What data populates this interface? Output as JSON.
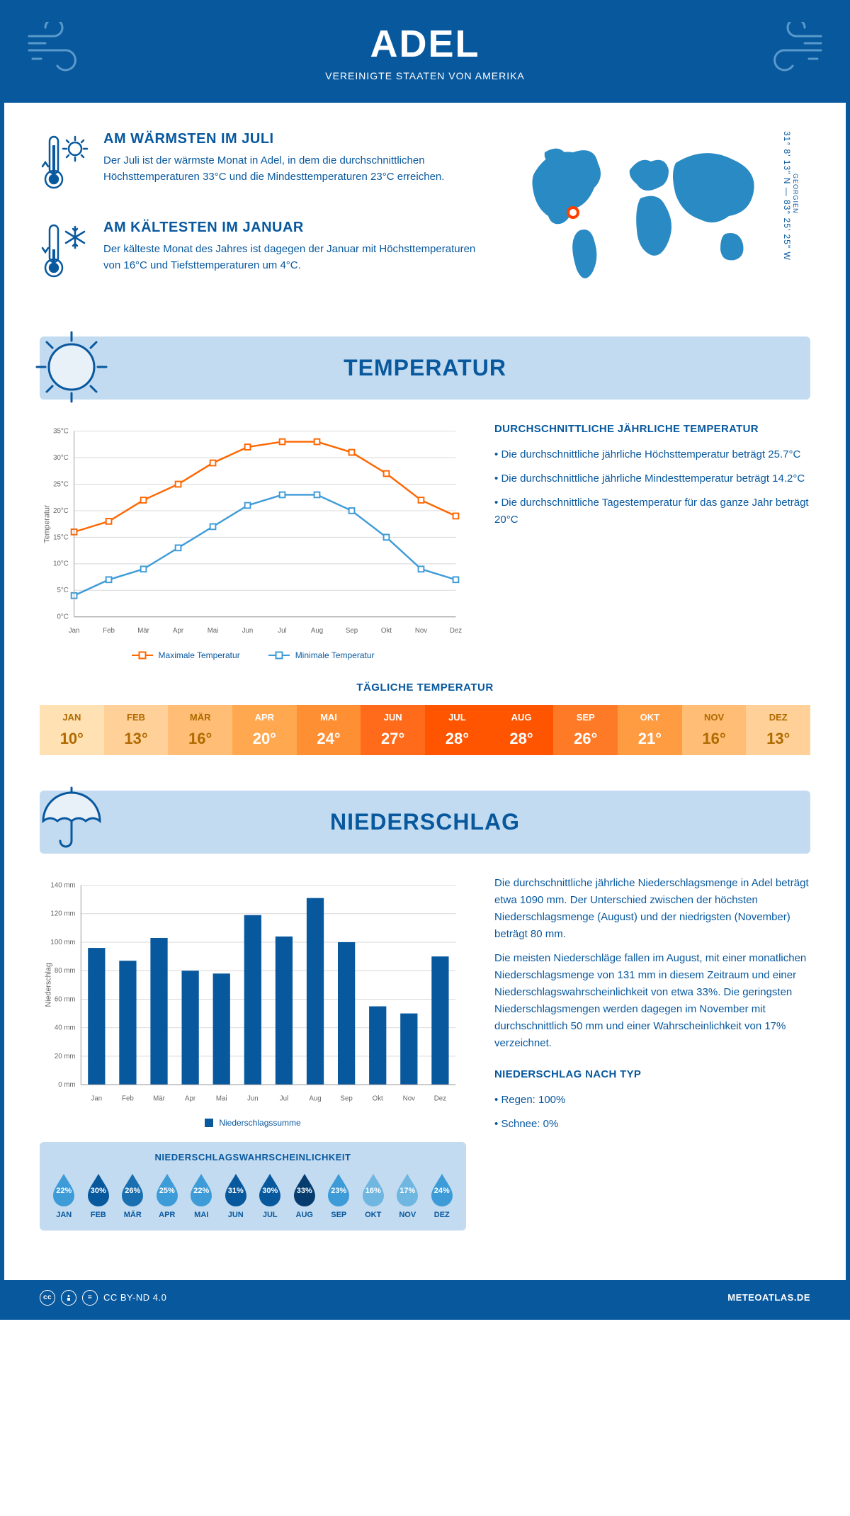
{
  "header": {
    "title": "ADEL",
    "subtitle": "VEREINIGTE STAATEN VON AMERIKA"
  },
  "coords": {
    "region": "GEORGIEN",
    "text": "31° 8' 13\" N — 83° 25' 25\" W"
  },
  "marker": {
    "left_pct": 20,
    "top_pct": 48
  },
  "warmest": {
    "title": "AM WÄRMSTEN IM JULI",
    "body": "Der Juli ist der wärmste Monat in Adel, in dem die durchschnittlichen Höchsttemperaturen 33°C und die Mindesttemperaturen 23°C erreichen."
  },
  "coldest": {
    "title": "AM KÄLTESTEN IM JANUAR",
    "body": "Der kälteste Monat des Jahres ist dagegen der Januar mit Höchsttemperaturen von 16°C und Tiefsttemperaturen um 4°C."
  },
  "temp_section": {
    "heading": "TEMPERATUR",
    "sidebar_title": "DURCHSCHNITTLICHE JÄHRLICHE TEMPERATUR",
    "bullets": [
      "• Die durchschnittliche jährliche Höchsttemperatur beträgt 25.7°C",
      "• Die durchschnittliche jährliche Mindesttemperatur beträgt 14.2°C",
      "• Die durchschnittliche Tagestemperatur für das ganze Jahr beträgt 20°C"
    ],
    "chart": {
      "type": "line",
      "months": [
        "Jan",
        "Feb",
        "Mär",
        "Apr",
        "Mai",
        "Jun",
        "Jul",
        "Aug",
        "Sep",
        "Okt",
        "Nov",
        "Dez"
      ],
      "max_series": {
        "label": "Maximale Temperatur",
        "color": "#ff6600",
        "values": [
          16,
          18,
          22,
          25,
          29,
          32,
          33,
          33,
          31,
          27,
          22,
          19
        ]
      },
      "min_series": {
        "label": "Minimale Temperatur",
        "color": "#3d9bd8",
        "values": [
          4,
          7,
          9,
          13,
          17,
          21,
          23,
          23,
          20,
          15,
          9,
          7
        ]
      },
      "y_label": "Temperatur",
      "y_min": 0,
      "y_max": 35,
      "y_step": 5,
      "grid_color": "#d8d8d8",
      "axis_color": "#999999",
      "label_fontsize": 11,
      "tick_fontsize": 10
    },
    "daily_title": "TÄGLICHE TEMPERATUR",
    "daily": {
      "months": [
        "JAN",
        "FEB",
        "MÄR",
        "APR",
        "MAI",
        "JUN",
        "JUL",
        "AUG",
        "SEP",
        "OKT",
        "NOV",
        "DEZ"
      ],
      "values": [
        "10°",
        "13°",
        "16°",
        "20°",
        "24°",
        "27°",
        "28°",
        "28°",
        "26°",
        "21°",
        "16°",
        "13°"
      ],
      "bg_colors": [
        "#ffe1b3",
        "#ffd199",
        "#ffbd75",
        "#ffa84f",
        "#ff8f33",
        "#ff6b1a",
        "#ff5500",
        "#ff5500",
        "#ff7a26",
        "#ff9b40",
        "#ffbd75",
        "#ffd199"
      ],
      "text_colors": [
        "#b06a00",
        "#b06a00",
        "#b06a00",
        "#ffffff",
        "#ffffff",
        "#ffffff",
        "#ffffff",
        "#ffffff",
        "#ffffff",
        "#ffffff",
        "#b06a00",
        "#b06a00"
      ]
    }
  },
  "precip_section": {
    "heading": "NIEDERSCHLAG",
    "chart": {
      "type": "bar",
      "months": [
        "Jan",
        "Feb",
        "Mär",
        "Apr",
        "Mai",
        "Jun",
        "Jul",
        "Aug",
        "Sep",
        "Okt",
        "Nov",
        "Dez"
      ],
      "values": [
        96,
        87,
        103,
        80,
        78,
        119,
        104,
        131,
        100,
        55,
        50,
        90
      ],
      "bar_color": "#08589e",
      "legend_label": "Niederschlagssumme",
      "y_label": "Niederschlag",
      "y_min": 0,
      "y_max": 140,
      "y_step": 20,
      "y_unit": "mm",
      "grid_color": "#d8d8d8",
      "axis_color": "#999999",
      "bar_width_ratio": 0.55
    },
    "text_p1": "Die durchschnittliche jährliche Niederschlagsmenge in Adel beträgt etwa 1090 mm. Der Unterschied zwischen der höchsten Niederschlagsmenge (August) und der niedrigsten (November) beträgt 80 mm.",
    "text_p2": "Die meisten Niederschläge fallen im August, mit einer monatlichen Niederschlagsmenge von 131 mm in diesem Zeitraum und einer Niederschlagswahrscheinlichkeit von etwa 33%. Die geringsten Niederschlagsmengen werden dagegen im November mit durchschnittlich 50 mm und einer Wahrscheinlichkeit von 17% verzeichnet.",
    "type_title": "NIEDERSCHLAG NACH TYP",
    "type_items": [
      "• Regen: 100%",
      "• Schnee: 0%"
    ],
    "prob": {
      "title": "NIEDERSCHLAGSWAHRSCHEINLICHKEIT",
      "months": [
        "JAN",
        "FEB",
        "MÄR",
        "APR",
        "MAI",
        "JUN",
        "JUL",
        "AUG",
        "SEP",
        "OKT",
        "NOV",
        "DEZ"
      ],
      "values": [
        "22%",
        "30%",
        "26%",
        "25%",
        "22%",
        "31%",
        "30%",
        "33%",
        "23%",
        "16%",
        "17%",
        "24%"
      ],
      "colors": [
        "#3d9bd8",
        "#08589e",
        "#1a6fb0",
        "#3d9bd8",
        "#3d9bd8",
        "#08589e",
        "#08589e",
        "#063d6e",
        "#3d9bd8",
        "#6fb6e0",
        "#6fb6e0",
        "#3d9bd8"
      ]
    }
  },
  "footer": {
    "license": "CC BY-ND 4.0",
    "site": "METEOATLAS.DE"
  },
  "colors": {
    "primary": "#08589e",
    "light": "#c2dbf0",
    "lighter": "#e8f0f8"
  }
}
